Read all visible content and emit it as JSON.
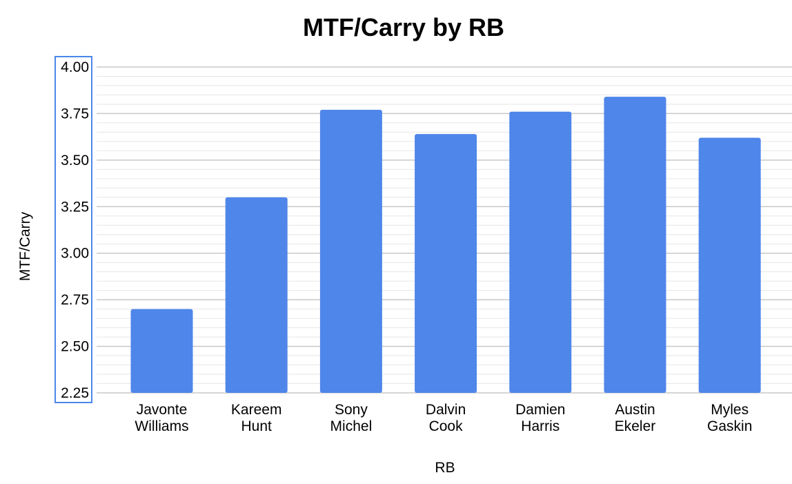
{
  "chart_data": {
    "type": "bar",
    "title": "MTF/Carry by RB",
    "xlabel": "RB",
    "ylabel": "MTF/Carry",
    "categories": [
      [
        "Javonte",
        "Williams"
      ],
      [
        "Kareem",
        "Hunt"
      ],
      [
        "Sony",
        "Michel"
      ],
      [
        "Dalvin",
        "Cook"
      ],
      [
        "Damien",
        "Harris"
      ],
      [
        "Austin",
        "Ekeler"
      ],
      [
        "Myles",
        "Gaskin"
      ]
    ],
    "series": [
      {
        "values": [
          2.7,
          3.3,
          3.77,
          3.64,
          3.76,
          3.84,
          3.62
        ]
      }
    ],
    "ylim": [
      2.25,
      4.0
    ],
    "yticks": [
      "2.25",
      "2.50",
      "2.75",
      "3.00",
      "3.25",
      "3.50",
      "3.75",
      "4.00"
    ],
    "grid": true,
    "legend": "none",
    "colors": {
      "bar": "#4F86EA",
      "major_grid": "#C8C8C8",
      "minor_grid": "#E6E6E6",
      "axis_highlight": "#4A86E8"
    }
  }
}
